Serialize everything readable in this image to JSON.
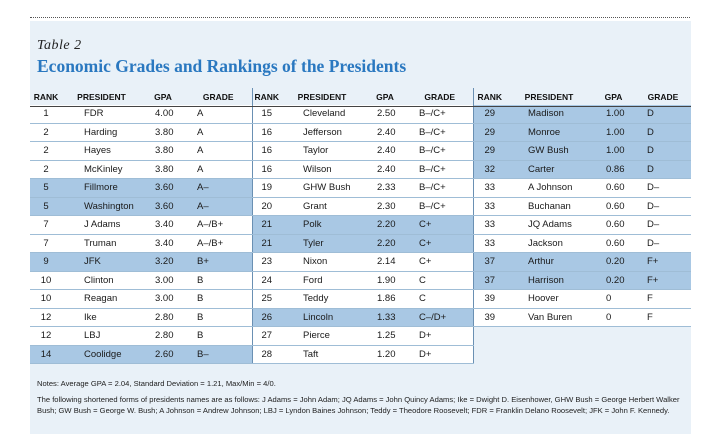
{
  "table_label": "Table 2",
  "title": "Economic Grades and Rankings of the Presidents",
  "columns": [
    "RANK",
    "PRESIDENT",
    "GPA",
    "GRADE"
  ],
  "groups": [
    {
      "rows": [
        {
          "rank": "1",
          "president": "FDR",
          "gpa": "4.00",
          "grade": "A",
          "highlight": false
        },
        {
          "rank": "2",
          "president": "Harding",
          "gpa": "3.80",
          "grade": "A",
          "highlight": false
        },
        {
          "rank": "2",
          "president": "Hayes",
          "gpa": "3.80",
          "grade": "A",
          "highlight": false
        },
        {
          "rank": "2",
          "president": "McKinley",
          "gpa": "3.80",
          "grade": "A",
          "highlight": false
        },
        {
          "rank": "5",
          "president": "Fillmore",
          "gpa": "3.60",
          "grade": "A–",
          "highlight": true
        },
        {
          "rank": "5",
          "president": "Washington",
          "gpa": "3.60",
          "grade": "A–",
          "highlight": true
        },
        {
          "rank": "7",
          "president": "J Adams",
          "gpa": "3.40",
          "grade": "A–/B+",
          "highlight": false
        },
        {
          "rank": "7",
          "president": "Truman",
          "gpa": "3.40",
          "grade": "A–/B+",
          "highlight": false
        },
        {
          "rank": "9",
          "president": "JFK",
          "gpa": "3.20",
          "grade": "B+",
          "highlight": true
        },
        {
          "rank": "10",
          "president": "Clinton",
          "gpa": "3.00",
          "grade": "B",
          "highlight": false
        },
        {
          "rank": "10",
          "president": "Reagan",
          "gpa": "3.00",
          "grade": "B",
          "highlight": false
        },
        {
          "rank": "12",
          "president": "Ike",
          "gpa": "2.80",
          "grade": "B",
          "highlight": false
        },
        {
          "rank": "12",
          "president": "LBJ",
          "gpa": "2.80",
          "grade": "B",
          "highlight": false
        },
        {
          "rank": "14",
          "president": "Coolidge",
          "gpa": "2.60",
          "grade": "B–",
          "highlight": true
        }
      ]
    },
    {
      "rows": [
        {
          "rank": "15",
          "president": "Cleveland",
          "gpa": "2.50",
          "grade": "B–/C+",
          "highlight": false
        },
        {
          "rank": "16",
          "president": "Jefferson",
          "gpa": "2.40",
          "grade": "B–/C+",
          "highlight": false
        },
        {
          "rank": "16",
          "president": "Taylor",
          "gpa": "2.40",
          "grade": "B–/C+",
          "highlight": false
        },
        {
          "rank": "16",
          "president": "Wilson",
          "gpa": "2.40",
          "grade": "B–/C+",
          "highlight": false
        },
        {
          "rank": "19",
          "president": "GHW Bush",
          "gpa": "2.33",
          "grade": "B–/C+",
          "highlight": false
        },
        {
          "rank": "20",
          "president": "Grant",
          "gpa": "2.30",
          "grade": "B–/C+",
          "highlight": false
        },
        {
          "rank": "21",
          "president": "Polk",
          "gpa": "2.20",
          "grade": "C+",
          "highlight": true
        },
        {
          "rank": "21",
          "president": "Tyler",
          "gpa": "2.20",
          "grade": "C+",
          "highlight": true
        },
        {
          "rank": "23",
          "president": "Nixon",
          "gpa": "2.14",
          "grade": "C+",
          "highlight": false
        },
        {
          "rank": "24",
          "president": "Ford",
          "gpa": "1.90",
          "grade": "C",
          "highlight": false
        },
        {
          "rank": "25",
          "president": "Teddy",
          "gpa": "1.86",
          "grade": "C",
          "highlight": false
        },
        {
          "rank": "26",
          "president": "Lincoln",
          "gpa": "1.33",
          "grade": "C–/D+",
          "highlight": true
        },
        {
          "rank": "27",
          "president": "Pierce",
          "gpa": "1.25",
          "grade": "D+",
          "highlight": false
        },
        {
          "rank": "28",
          "president": "Taft",
          "gpa": "1.20",
          "grade": "D+",
          "highlight": false
        }
      ]
    },
    {
      "rows": [
        {
          "rank": "29",
          "president": "Madison",
          "gpa": "1.00",
          "grade": "D",
          "highlight": true
        },
        {
          "rank": "29",
          "president": "Monroe",
          "gpa": "1.00",
          "grade": "D",
          "highlight": true
        },
        {
          "rank": "29",
          "president": "GW Bush",
          "gpa": "1.00",
          "grade": "D",
          "highlight": true
        },
        {
          "rank": "32",
          "president": "Carter",
          "gpa": "0.86",
          "grade": "D",
          "highlight": true
        },
        {
          "rank": "33",
          "president": "A Johnson",
          "gpa": "0.60",
          "grade": "D–",
          "highlight": false
        },
        {
          "rank": "33",
          "president": "Buchanan",
          "gpa": "0.60",
          "grade": "D–",
          "highlight": false
        },
        {
          "rank": "33",
          "president": "JQ Adams",
          "gpa": "0.60",
          "grade": "D–",
          "highlight": false
        },
        {
          "rank": "33",
          "president": "Jackson",
          "gpa": "0.60",
          "grade": "D–",
          "highlight": false
        },
        {
          "rank": "37",
          "president": "Arthur",
          "gpa": "0.20",
          "grade": "F+",
          "highlight": true
        },
        {
          "rank": "37",
          "president": "Harrison",
          "gpa": "0.20",
          "grade": "F+",
          "highlight": true
        },
        {
          "rank": "39",
          "president": "Hoover",
          "gpa": "0",
          "grade": "F",
          "highlight": false
        },
        {
          "rank": "39",
          "president": "Van Buren",
          "gpa": "0",
          "grade": "F",
          "highlight": false
        }
      ]
    }
  ],
  "notes": {
    "summary": "Notes: Average GPA = 2.04, Standard Deviation = 1.21, Max/Min = 4/0.",
    "abbreviations": "The following shortened forms of presidents names are as follows: J Adams = John Adam; JQ Adams = John Quincy Adams; Ike = Dwight D. Eisenhower, GHW Bush = George Herbert Walker Bush; GW Bush = George W. Bush; A Johnson = Andrew Johnson; LBJ = Lyndon Baines Johnson; Teddy = Theodore Roosevelt; FDR = Franklin Delano Roosevelt; JFK = John F. Kennedy."
  },
  "colors": {
    "title": "#2a78c0",
    "panel": "#e9f1f8",
    "highlight": "#a9c8e4"
  }
}
